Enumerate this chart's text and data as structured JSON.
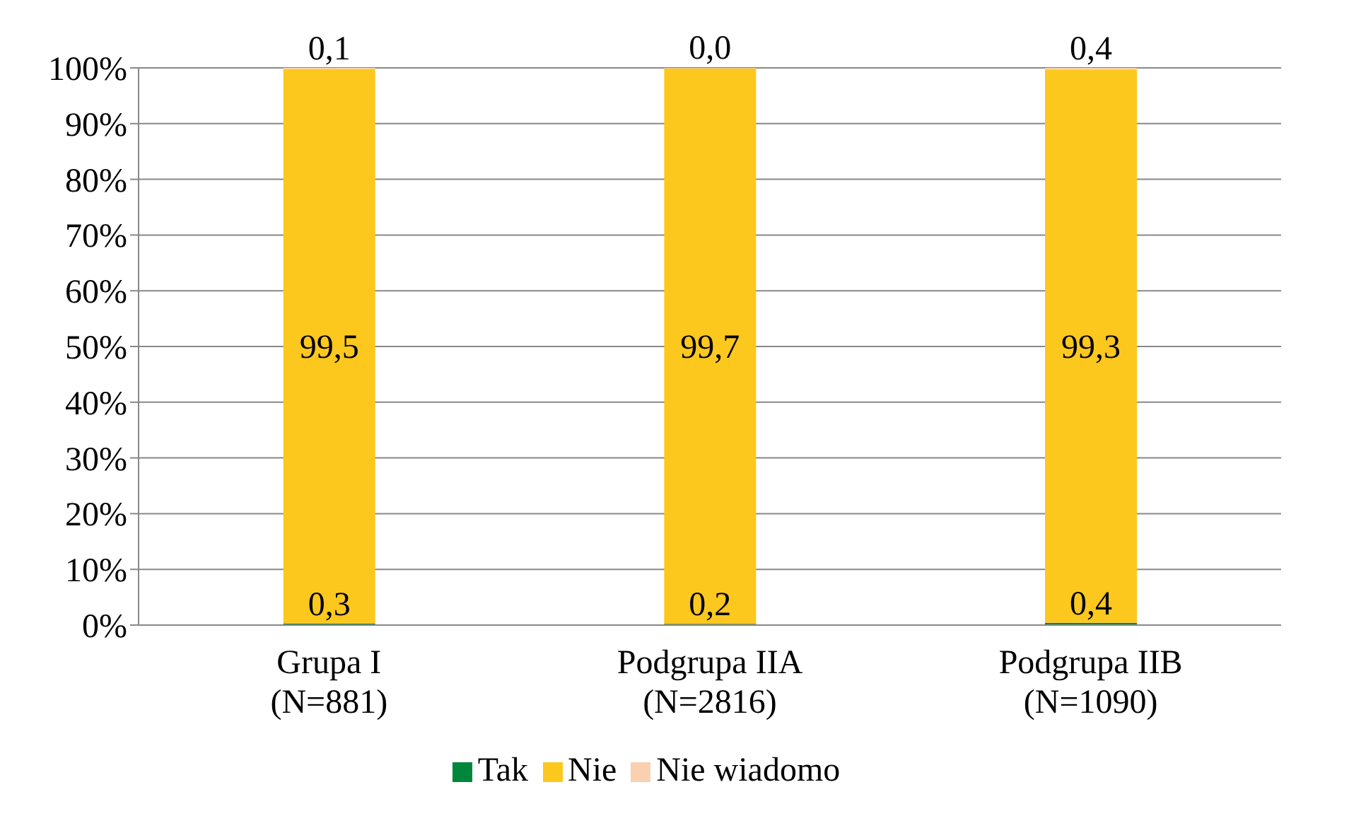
{
  "chart_data": {
    "type": "bar",
    "stacked": true,
    "categories": [
      "Grupa I\n(N=881)",
      "Podgrupa IIA\n(N=2816)",
      "Podgrupa IIB\n(N=1090)"
    ],
    "series": [
      {
        "name": "Tak",
        "color": "#00873c",
        "values": [
          0.3,
          0.2,
          0.4
        ],
        "value_labels": [
          "0,3",
          "0,2",
          "0,4"
        ]
      },
      {
        "name": "Nie",
        "color": "#fcc81e",
        "values": [
          99.5,
          99.7,
          99.3
        ],
        "value_labels": [
          "99,5",
          "99,7",
          "99,3"
        ]
      },
      {
        "name": "Nie wiadomo",
        "color": "#f9d0b0",
        "values": [
          0.1,
          0.0,
          0.4
        ],
        "value_labels": [
          "0,1",
          "0,0",
          "0,4"
        ]
      }
    ],
    "ylim": [
      0,
      100
    ],
    "yticks": [
      {
        "value": 0,
        "label": "0%"
      },
      {
        "value": 10,
        "label": "10%"
      },
      {
        "value": 20,
        "label": "20%"
      },
      {
        "value": 30,
        "label": "30%"
      },
      {
        "value": 40,
        "label": "40%"
      },
      {
        "value": 50,
        "label": "50%"
      },
      {
        "value": 60,
        "label": "60%"
      },
      {
        "value": 70,
        "label": "70%"
      },
      {
        "value": 80,
        "label": "80%"
      },
      {
        "value": 90,
        "label": "90%"
      },
      {
        "value": 100,
        "label": "100%"
      }
    ],
    "grid": "y",
    "legend": "bottom"
  }
}
